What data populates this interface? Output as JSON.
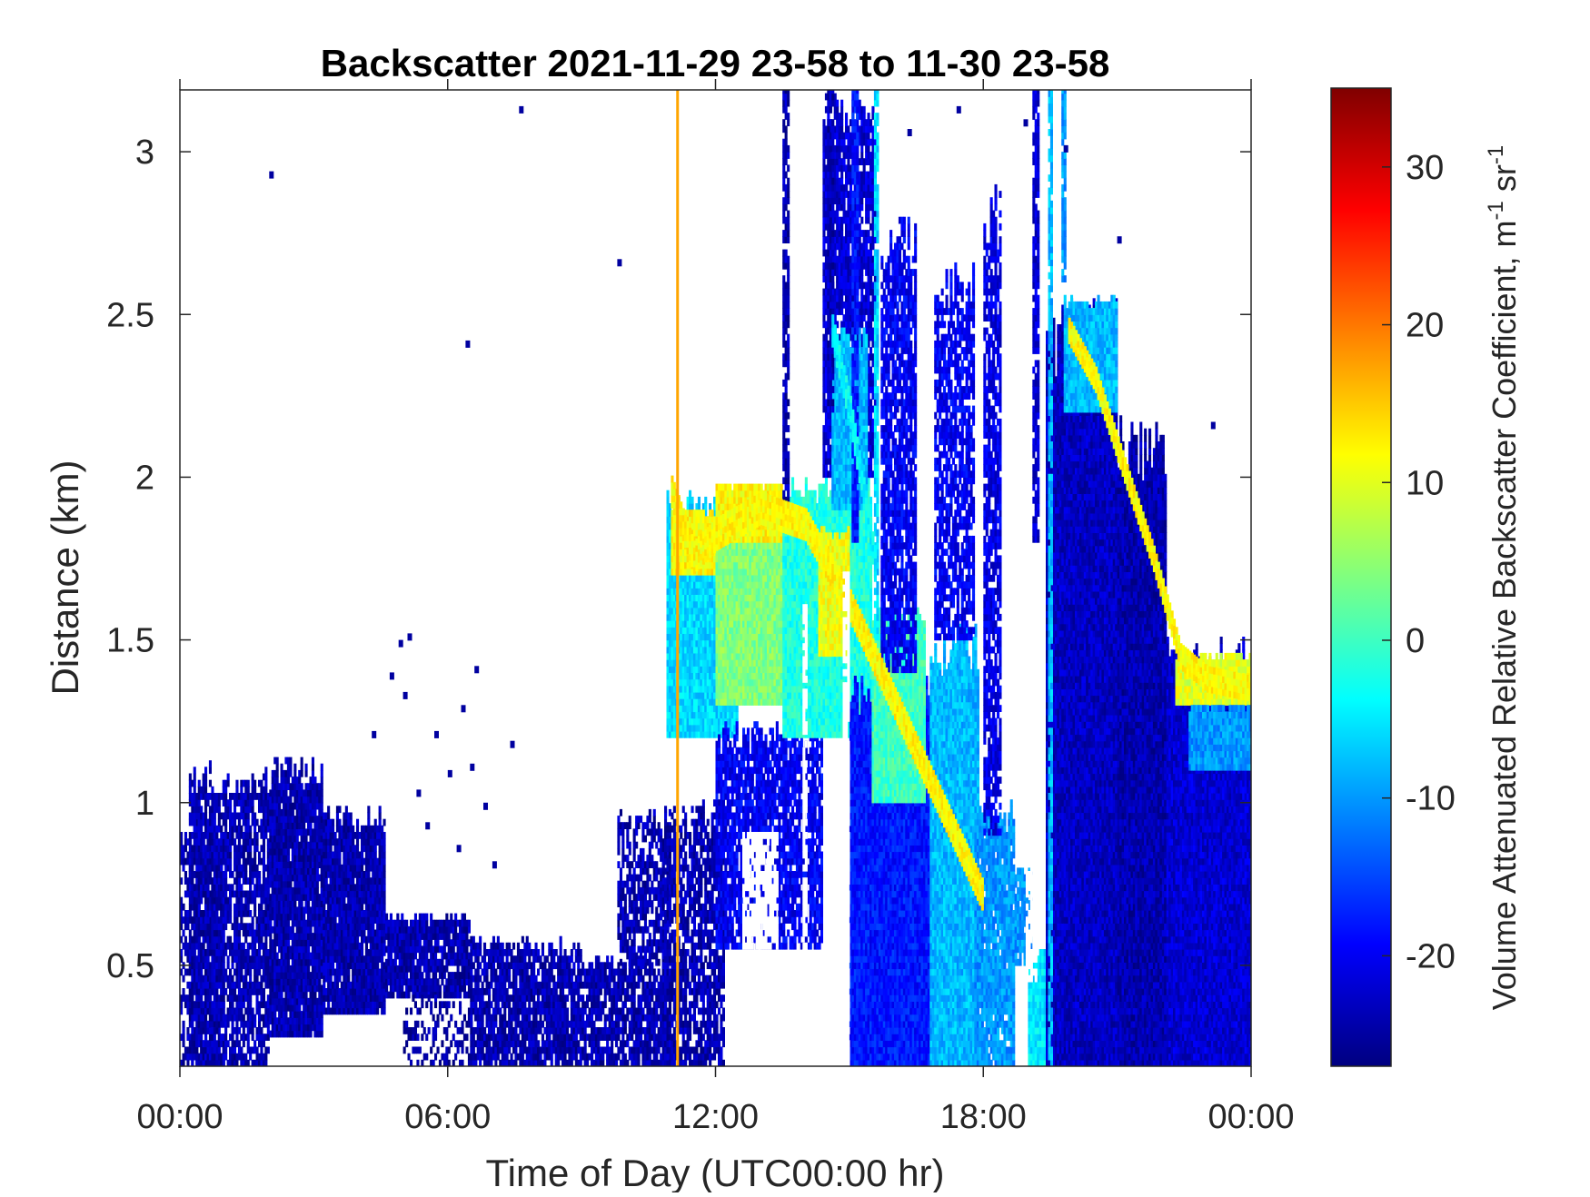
{
  "chart_data": {
    "type": "heatmap",
    "title": "Backscatter 2021-11-29 23-58 to 11-30 23-58",
    "xlabel": "Time of Day (UTC00:00 hr)",
    "ylabel": "Distance (km)",
    "xlim": [
      0,
      24
    ],
    "ylim": [
      0.19,
      3.19
    ],
    "xticks": [
      {
        "value": 0,
        "label": "00:00"
      },
      {
        "value": 6,
        "label": "06:00"
      },
      {
        "value": 12,
        "label": "12:00"
      },
      {
        "value": 18,
        "label": "18:00"
      },
      {
        "value": 24,
        "label": "00:00"
      }
    ],
    "yticks": [
      {
        "value": 0.5,
        "label": "0.5"
      },
      {
        "value": 1,
        "label": "1"
      },
      {
        "value": 1.5,
        "label": "1.5"
      },
      {
        "value": 2,
        "label": "2"
      },
      {
        "value": 2.5,
        "label": "2.5"
      },
      {
        "value": 3,
        "label": "3"
      }
    ],
    "colorbar": {
      "label": "Volume Attenuated Relative Backscatter Coefficient, m",
      "label_sup1": "-1",
      "label_mid": " sr",
      "label_sup2": "-1",
      "colormap": "jet",
      "clim": [
        -27,
        35
      ],
      "ticks": [
        {
          "value": -20,
          "label": "-20"
        },
        {
          "value": -10,
          "label": "-10"
        },
        {
          "value": 0,
          "label": "0"
        },
        {
          "value": 10,
          "label": "10"
        },
        {
          "value": 20,
          "label": "20"
        },
        {
          "value": 30,
          "label": "30"
        }
      ]
    },
    "marker_line": {
      "x": 11.15,
      "color": "#ffa500"
    },
    "grid": false,
    "value_field": "backscatter (colorbar units)",
    "regions": [
      {
        "t0": 0.0,
        "t1": 1.0,
        "bottom": 0.19,
        "top": 0.95,
        "value": -24,
        "fill": 0.55
      },
      {
        "t0": 0.2,
        "t1": 2.0,
        "bottom": 0.19,
        "top": 1.12,
        "value": -24,
        "fill": 0.8
      },
      {
        "t0": 2.0,
        "t1": 3.2,
        "bottom": 0.28,
        "top": 1.14,
        "value": -24,
        "fill": 0.95
      },
      {
        "t0": 3.2,
        "t1": 4.6,
        "bottom": 0.35,
        "top": 0.98,
        "value": -24,
        "fill": 0.95
      },
      {
        "t0": 4.6,
        "t1": 6.5,
        "bottom": 0.4,
        "top": 0.65,
        "value": -24,
        "fill": 0.92
      },
      {
        "t0": 5.0,
        "t1": 7.0,
        "bottom": 0.19,
        "top": 0.4,
        "value": -25,
        "fill": 0.35
      },
      {
        "t0": 6.5,
        "t1": 9.0,
        "bottom": 0.19,
        "top": 0.58,
        "value": -24,
        "fill": 0.85
      },
      {
        "t0": 9.0,
        "t1": 11.0,
        "bottom": 0.19,
        "top": 0.52,
        "value": -24,
        "fill": 0.8
      },
      {
        "t0": 9.8,
        "t1": 11.0,
        "bottom": 0.5,
        "top": 0.98,
        "value": -24,
        "fill": 0.65
      },
      {
        "t0": 10.8,
        "t1": 12.2,
        "bottom": 0.19,
        "top": 1.0,
        "value": -24,
        "fill": 0.75
      },
      {
        "t0": 10.9,
        "t1": 12.5,
        "bottom": 1.2,
        "top": 1.95,
        "value": -6,
        "fill": 1.0
      },
      {
        "t0": 11.0,
        "t1": 12.0,
        "bottom": 1.7,
        "top": 1.9,
        "value": 12,
        "fill": 1.0
      },
      {
        "t0": 12.0,
        "t1": 13.5,
        "bottom": 1.3,
        "top": 1.95,
        "value": 4,
        "fill": 1.0
      },
      {
        "t0": 12.0,
        "t1": 13.5,
        "bottom": 1.8,
        "top": 1.98,
        "value": 12,
        "fill": 1.0
      },
      {
        "t0": 12.0,
        "t1": 14.4,
        "bottom": 0.55,
        "top": 1.25,
        "value": -20,
        "fill": 0.85
      },
      {
        "t0": 13.5,
        "t1": 15.5,
        "bottom": 1.2,
        "top": 2.0,
        "value": -2,
        "fill": 1.0
      },
      {
        "t0": 14.3,
        "t1": 15.0,
        "bottom": 1.45,
        "top": 1.85,
        "value": 11,
        "fill": 1.0
      },
      {
        "t0": 14.4,
        "t1": 15.6,
        "bottom": 2.0,
        "top": 3.19,
        "value": -22,
        "fill": 0.85
      },
      {
        "t0": 14.6,
        "t1": 15.4,
        "bottom": 1.9,
        "top": 2.45,
        "value": -8,
        "fill": 1.0
      },
      {
        "t0": 15.0,
        "t1": 17.0,
        "bottom": 0.19,
        "top": 1.4,
        "value": -18,
        "fill": 1.0
      },
      {
        "t0": 15.5,
        "t1": 16.7,
        "bottom": 1.0,
        "top": 1.6,
        "value": 0,
        "fill": 1.0
      },
      {
        "t0": 15.7,
        "t1": 16.5,
        "bottom": 1.4,
        "top": 2.8,
        "value": -20,
        "fill": 0.8
      },
      {
        "t0": 16.8,
        "t1": 17.9,
        "bottom": 0.19,
        "top": 1.55,
        "value": -8,
        "fill": 1.0
      },
      {
        "t0": 16.9,
        "t1": 17.8,
        "bottom": 1.5,
        "top": 2.65,
        "value": -20,
        "fill": 0.75
      },
      {
        "t0": 17.8,
        "t1": 18.7,
        "bottom": 0.19,
        "top": 1.0,
        "value": -10,
        "fill": 0.95
      },
      {
        "t0": 18.0,
        "t1": 18.4,
        "bottom": 0.9,
        "top": 2.9,
        "value": -21,
        "fill": 0.8
      },
      {
        "t0": 18.7,
        "t1": 19.1,
        "bottom": 0.5,
        "top": 0.8,
        "value": -10,
        "fill": 0.9
      },
      {
        "t0": 19.0,
        "t1": 19.5,
        "bottom": 0.19,
        "top": 0.55,
        "value": -5,
        "fill": 1.0
      },
      {
        "t0": 19.4,
        "t1": 21.0,
        "bottom": 0.19,
        "top": 2.55,
        "value": -23,
        "fill": 1.0
      },
      {
        "t0": 19.8,
        "t1": 21.0,
        "bottom": 2.2,
        "top": 2.55,
        "value": -8,
        "fill": 1.0
      },
      {
        "t0": 21.0,
        "t1": 22.1,
        "bottom": 0.19,
        "top": 2.2,
        "value": -24,
        "fill": 1.0
      },
      {
        "t0": 22.1,
        "t1": 24.0,
        "bottom": 0.19,
        "top": 1.5,
        "value": -22,
        "fill": 1.0
      },
      {
        "t0": 22.3,
        "t1": 24.0,
        "bottom": 1.3,
        "top": 1.45,
        "value": 10,
        "fill": 1.0
      },
      {
        "t0": 22.6,
        "t1": 24.0,
        "bottom": 1.1,
        "top": 1.3,
        "value": -10,
        "fill": 1.0
      }
    ],
    "features": [
      {
        "kind": "band",
        "points": [
          [
            11.0,
            1.95
          ],
          [
            11.5,
            1.75
          ],
          [
            12.0,
            1.82
          ],
          [
            13.0,
            1.9
          ],
          [
            14.0,
            1.85
          ],
          [
            15.0,
            1.6
          ],
          [
            16.0,
            1.3
          ],
          [
            17.0,
            1.0
          ],
          [
            18.0,
            0.7
          ]
        ],
        "thickness_km": 0.09,
        "value": 12
      },
      {
        "kind": "band",
        "points": [
          [
            19.9,
            2.45
          ],
          [
            20.5,
            2.3
          ],
          [
            21.2,
            2.0
          ],
          [
            21.8,
            1.75
          ],
          [
            22.4,
            1.45
          ],
          [
            23.0,
            1.38
          ],
          [
            24.0,
            1.35
          ]
        ],
        "thickness_km": 0.08,
        "value": 12
      },
      {
        "kind": "band",
        "points": [
          [
            14.6,
            2.45
          ],
          [
            15.0,
            2.2
          ],
          [
            15.3,
            1.95
          ],
          [
            15.6,
            1.7
          ]
        ],
        "thickness_km": 0.1,
        "value": -4
      }
    ],
    "columns": [
      {
        "t0": 13.5,
        "t1": 13.65,
        "bottom": 1.9,
        "top": 3.19,
        "value": -24
      },
      {
        "t0": 14.5,
        "t1": 14.62,
        "bottom": 2.2,
        "top": 3.19,
        "value": -24
      },
      {
        "t0": 15.05,
        "t1": 15.18,
        "bottom": 1.8,
        "top": 3.19,
        "value": -18
      },
      {
        "t0": 15.55,
        "t1": 15.65,
        "bottom": 1.5,
        "top": 3.19,
        "value": -6
      },
      {
        "t0": 19.1,
        "t1": 19.22,
        "bottom": 1.8,
        "top": 3.19,
        "value": -22
      },
      {
        "t0": 19.45,
        "t1": 19.55,
        "bottom": 0.19,
        "top": 3.19,
        "value": -8
      },
      {
        "t0": 19.75,
        "t1": 19.85,
        "bottom": 2.6,
        "top": 3.19,
        "value": -10
      }
    ],
    "gaps": [
      {
        "t0": 13.95,
        "t1": 14.05,
        "bottom": 0.19,
        "top": 1.6
      },
      {
        "t0": 14.85,
        "t1": 14.97,
        "bottom": 0.19,
        "top": 1.7
      },
      {
        "t0": 18.95,
        "t1": 19.2,
        "bottom": 0.45,
        "top": 1.3
      },
      {
        "t0": 12.6,
        "t1": 13.4,
        "bottom": 0.55,
        "top": 0.9
      }
    ],
    "speckles": [
      {
        "x": 7.6,
        "y": 3.12
      },
      {
        "x": 2.0,
        "y": 2.92
      },
      {
        "x": 9.8,
        "y": 2.65
      },
      {
        "x": 6.4,
        "y": 2.4
      },
      {
        "x": 21.0,
        "y": 2.72
      },
      {
        "x": 23.1,
        "y": 2.15
      },
      {
        "x": 4.9,
        "y": 1.48
      },
      {
        "x": 5.1,
        "y": 1.5
      },
      {
        "x": 4.7,
        "y": 1.38
      },
      {
        "x": 6.6,
        "y": 1.4
      },
      {
        "x": 6.3,
        "y": 1.28
      },
      {
        "x": 5.7,
        "y": 1.2
      },
      {
        "x": 6.0,
        "y": 1.08
      },
      {
        "x": 6.5,
        "y": 1.1
      },
      {
        "x": 4.3,
        "y": 1.2
      },
      {
        "x": 7.4,
        "y": 1.17
      },
      {
        "x": 6.8,
        "y": 0.98
      },
      {
        "x": 5.3,
        "y": 1.02
      },
      {
        "x": 5.5,
        "y": 0.92
      },
      {
        "x": 6.2,
        "y": 0.85
      },
      {
        "x": 7.0,
        "y": 0.8
      },
      {
        "x": 5.0,
        "y": 1.32
      },
      {
        "x": 18.9,
        "y": 3.08
      },
      {
        "x": 19.8,
        "y": 3.0
      },
      {
        "x": 17.4,
        "y": 3.12
      },
      {
        "x": 16.3,
        "y": 3.05
      }
    ]
  }
}
